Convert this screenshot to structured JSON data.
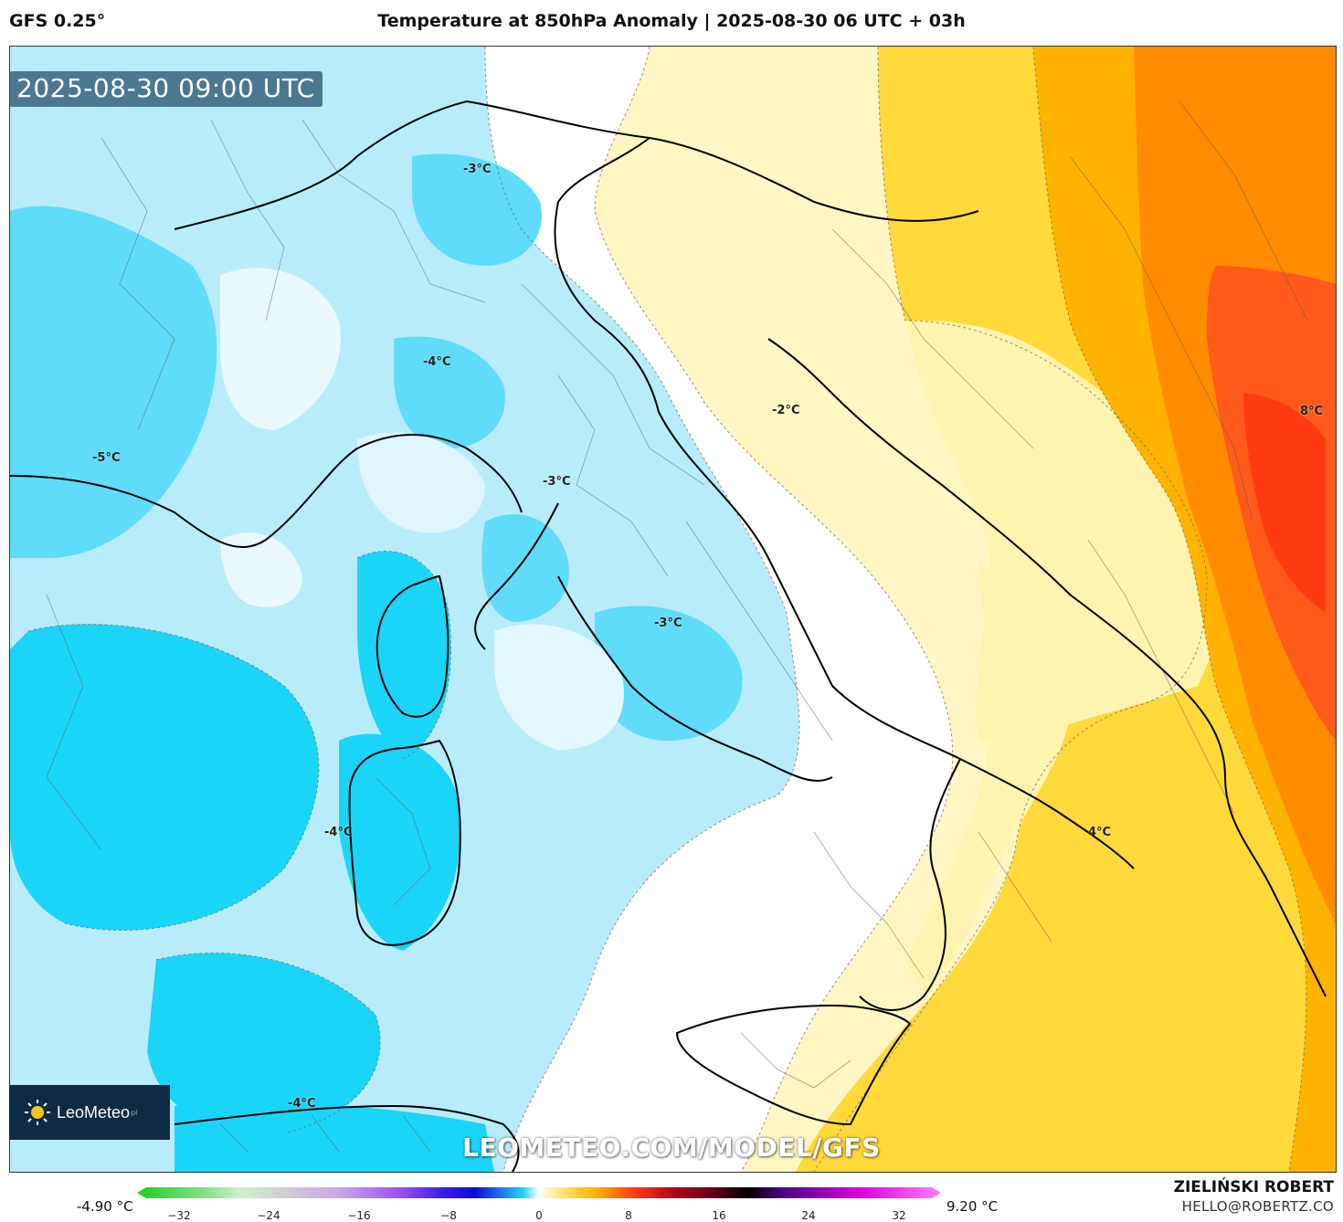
{
  "header": {
    "model": "GFS 0.25°",
    "title": "Temperature at 850hPa Anomaly | 2025-08-30 06 UTC + 03h"
  },
  "map": {
    "timestamp": "2025-08-30 09:00 UTC",
    "watermark": "LEOMETEO.COM/MODEL/GFS",
    "logo_text": "LeoMeteo",
    "logo_sup": "pl",
    "labels": [
      "-3°C",
      "-4°C",
      "-5°C",
      "-3°C",
      "-2°C",
      "-3°C",
      "-4°C",
      "-4°C",
      "4°C",
      "8°C"
    ]
  },
  "legend": {
    "min_label": "-4.90 °C",
    "max_label": "9.20 °C",
    "ticks": [
      "−32",
      "−24",
      "−16",
      "−8",
      "0",
      "8",
      "16",
      "24",
      "32"
    ]
  },
  "footer": {
    "author": "ZIELIŃSKI ROBERT",
    "email": "HELLO@ROBERTZ.CO"
  },
  "colors": {
    "cold_dark": "#1ad5f7",
    "cold_mid": "#6fdff9",
    "cold_light": "#b8ecfb",
    "neutral": "#ffffff",
    "warm_light": "#fff3b0",
    "warm_mid": "#ffd21f",
    "warm_orange": "#ffa500",
    "warm_red": "#ff5a1a",
    "logo_bg": "#0f2a44"
  }
}
